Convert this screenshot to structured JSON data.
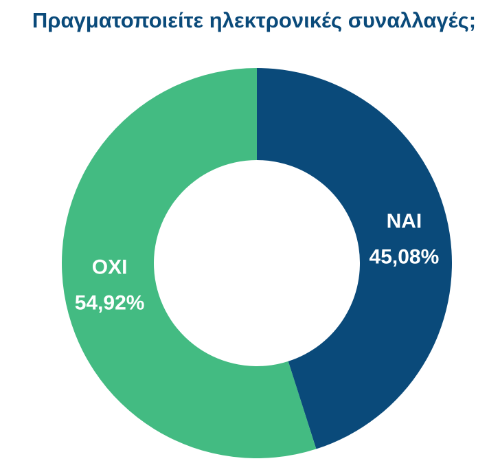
{
  "chart_data": {
    "type": "donut",
    "title": "Πραγματοποιείτε ηλεκτρονικές συναλλαγές;",
    "categories": [
      "ΝΑΙ",
      "ΟΧΙ"
    ],
    "values": [
      45.08,
      54.92
    ],
    "value_labels": [
      "45,08%",
      "54,92%"
    ],
    "colors": [
      "#0a4a7a",
      "#43bb82"
    ]
  }
}
